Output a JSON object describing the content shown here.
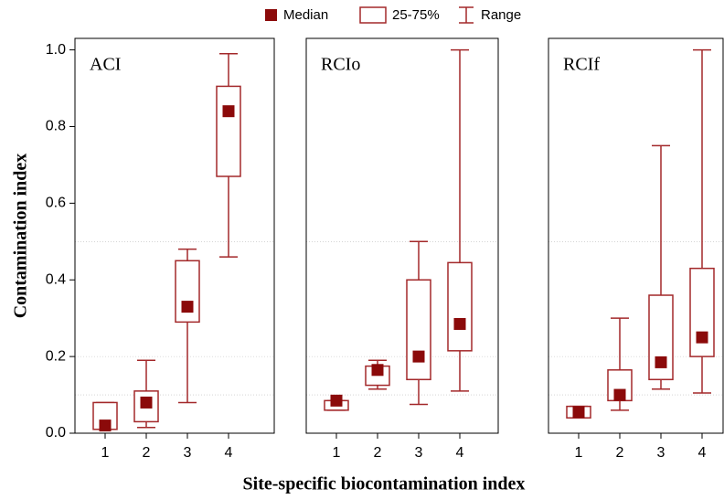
{
  "figure": {
    "xlabel": "Site-specific biocontamination index",
    "ylabel": "Contamination index",
    "legend": {
      "median": "Median",
      "box": "25-75%",
      "range": "Range"
    },
    "ylim": [
      0,
      1.03
    ],
    "yticks": [
      {
        "value": 0,
        "label": "0.0"
      },
      0.2,
      0.4,
      0.6,
      0.8,
      {
        "value": 1,
        "label": "1.0"
      }
    ],
    "gridlines": [
      0.1,
      0.2,
      0.5
    ],
    "color": "#a3282a",
    "median_color": "#8b0a0a"
  },
  "chart_data": [
    {
      "type": "box",
      "title": "ACI",
      "categories": [
        "1",
        "2",
        "3",
        "4"
      ],
      "median": [
        0.02,
        0.08,
        0.33,
        0.84
      ],
      "q1": [
        0.01,
        0.03,
        0.29,
        0.67
      ],
      "q3": [
        0.08,
        0.11,
        0.45,
        0.905
      ],
      "min": [
        0.01,
        0.015,
        0.08,
        0.46
      ],
      "max": [
        0.08,
        0.19,
        0.48,
        0.99
      ]
    },
    {
      "type": "box",
      "title": "RCIo",
      "categories": [
        "1",
        "2",
        "3",
        "4"
      ],
      "median": [
        0.085,
        0.165,
        0.2,
        0.285
      ],
      "q1": [
        0.06,
        0.125,
        0.14,
        0.215
      ],
      "q3": [
        0.085,
        0.175,
        0.4,
        0.445
      ],
      "min": [
        0.06,
        0.115,
        0.075,
        0.11
      ],
      "max": [
        0.085,
        0.19,
        0.5,
        1.0
      ]
    },
    {
      "type": "box",
      "title": "RCIf",
      "categories": [
        "1",
        "2",
        "3",
        "4"
      ],
      "median": [
        0.055,
        0.1,
        0.185,
        0.25
      ],
      "q1": [
        0.04,
        0.085,
        0.14,
        0.2
      ],
      "q3": [
        0.07,
        0.165,
        0.36,
        0.43
      ],
      "min": [
        0.04,
        0.06,
        0.115,
        0.105
      ],
      "max": [
        0.07,
        0.3,
        0.75,
        1.0
      ]
    }
  ]
}
